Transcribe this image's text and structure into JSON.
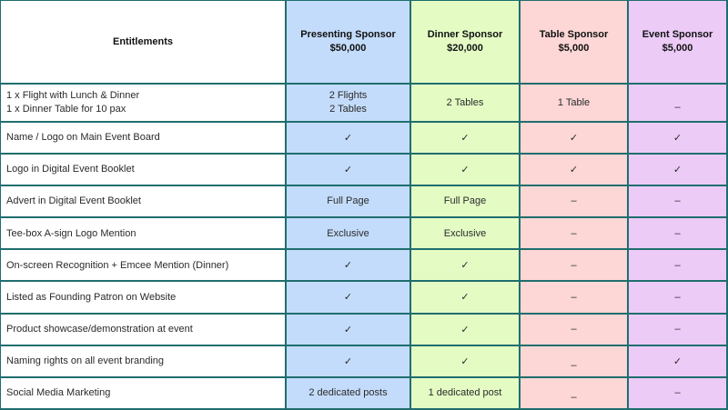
{
  "header": {
    "entitlements": "Entitlements",
    "tiers": [
      {
        "name": "Presenting Sponsor",
        "price": "$50,000",
        "color": "#c4dcfb"
      },
      {
        "name": "Dinner Sponsor",
        "price": "$20,000",
        "color": "#e4fcc4"
      },
      {
        "name": "Table Sponsor",
        "price": "$5,000",
        "color": "#fdd6d6"
      },
      {
        "name": "Event Sponsor",
        "price": "$5,000",
        "color": "#eccbf7"
      }
    ]
  },
  "first_row": {
    "entitlement": [
      "1 x Flight with Lunch & Dinner",
      "1 x Dinner Table for 10 pax"
    ],
    "presenting": [
      "2 Flights",
      "2 Tables"
    ],
    "dinner": "2 Tables",
    "table": "1 Table",
    "event": "–"
  },
  "rows": [
    {
      "entitlement": "Name / Logo on Main Event Board",
      "values": [
        "✓",
        "✓",
        "✓",
        "✓"
      ]
    },
    {
      "entitlement": "Logo in Digital Event Booklet",
      "values": [
        "✓",
        "✓",
        "✓",
        "✓"
      ]
    },
    {
      "entitlement": "Advert in Digital Event Booklet",
      "values": [
        "Full Page",
        "Full Page",
        "–",
        "–"
      ]
    },
    {
      "entitlement": "Tee-box A-sign Logo Mention",
      "values": [
        "Exclusive",
        "Exclusive",
        "–",
        "–"
      ]
    },
    {
      "entitlement": "On-screen Recognition + Emcee Mention (Dinner)",
      "values": [
        "✓",
        "✓",
        "–",
        "–"
      ]
    },
    {
      "entitlement": "Listed as Founding Patron on Website",
      "values": [
        "✓",
        "✓",
        "–",
        "–"
      ]
    },
    {
      "entitlement": "Product showcase/demonstration at event",
      "values": [
        "✓",
        "✓",
        "–",
        "–"
      ]
    },
    {
      "entitlement": "Naming rights on all event branding",
      "values": [
        "✓",
        "✓",
        "–",
        "✓"
      ]
    },
    {
      "entitlement": "Social Media Marketing",
      "values": [
        "2 dedicated posts",
        "1 dedicated post",
        "–",
        "–"
      ]
    }
  ]
}
